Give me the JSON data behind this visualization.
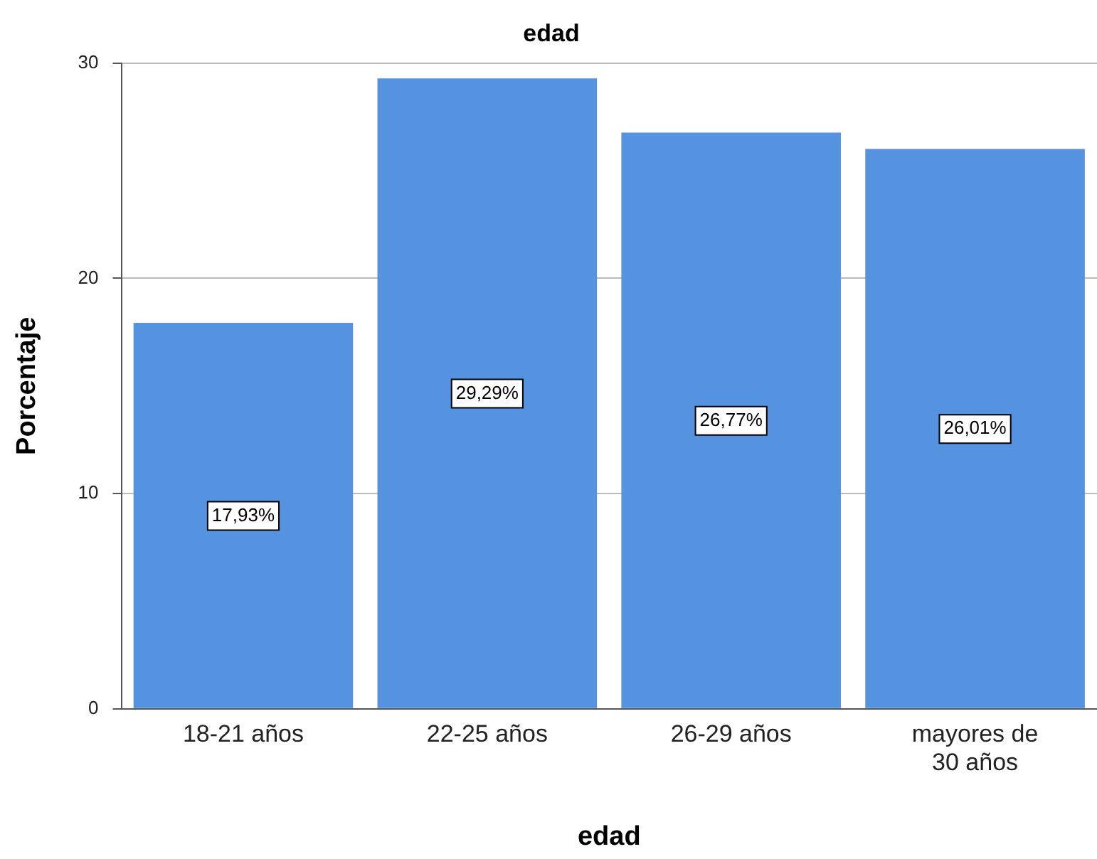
{
  "chart_data": {
    "type": "bar",
    "title": "edad",
    "xlabel": "edad",
    "ylabel": "Porcentaje",
    "categories": [
      "18-21 años",
      "22-25 años",
      "26-29 años",
      "mayores de 30 años"
    ],
    "values": [
      17.93,
      29.29,
      26.77,
      26.01
    ],
    "value_labels": [
      "17,93%",
      "29,29%",
      "26,77%",
      "26,01%"
    ],
    "color": "#5592e0",
    "ylim": [
      0,
      30
    ],
    "yticks": [
      0,
      10,
      20,
      30
    ],
    "grid": "y",
    "legend": false
  }
}
